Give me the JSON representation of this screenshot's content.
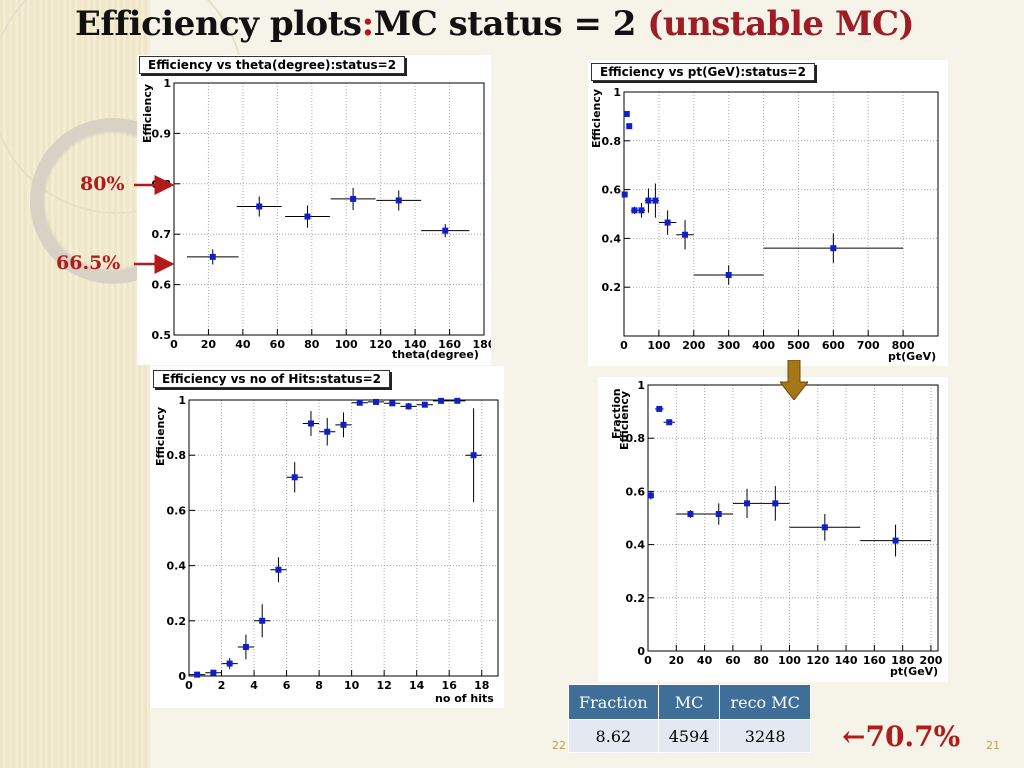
{
  "slide": {
    "title_part1": "Efficiency plots",
    "title_colon": ":",
    "title_part2": "MC status = 2 ",
    "title_part3": "(unstable MC)",
    "annotations": {
      "a80": "80%",
      "a665": "66.5%"
    },
    "big_percent": "70.7%",
    "big_arrow": "←",
    "page_left": "22",
    "page_right": "21",
    "colors": {
      "accent_red": "#b31b1b",
      "marker": "#1020c8",
      "table_header": "#3f6f99"
    }
  },
  "table": {
    "headers": [
      "Fraction",
      "MC",
      "reco MC"
    ],
    "row": [
      "8.62",
      "4594",
      "3248"
    ]
  },
  "chart_data": [
    {
      "type": "scatter",
      "title": "Efficiency vs theta(degree):status=2",
      "xlabel": "theta(degree)",
      "ylabel": "Efficiency",
      "xlim": [
        0,
        180
      ],
      "ylim": [
        0.5,
        1.0
      ],
      "xticks": [
        0,
        20,
        40,
        60,
        80,
        100,
        120,
        140,
        160,
        180
      ],
      "yticks": [
        0.5,
        0.6,
        0.7,
        0.8,
        0.9,
        1
      ],
      "ytick_labels": [
        "0.5",
        "0.6",
        "0.7",
        "0.8",
        "0.9",
        "1"
      ],
      "grid": true,
      "points": [
        {
          "x": 22.5,
          "y": 0.655,
          "xerr": 15,
          "yerr": 0.015
        },
        {
          "x": 49.5,
          "y": 0.755,
          "xerr": 13,
          "yerr": 0.02
        },
        {
          "x": 77.5,
          "y": 0.735,
          "xerr": 13,
          "yerr": 0.022
        },
        {
          "x": 104,
          "y": 0.77,
          "xerr": 13,
          "yerr": 0.022
        },
        {
          "x": 130.5,
          "y": 0.767,
          "xerr": 13,
          "yerr": 0.02
        },
        {
          "x": 157.5,
          "y": 0.707,
          "xerr": 14,
          "yerr": 0.013
        }
      ]
    },
    {
      "type": "scatter",
      "title": "Efficiency vs pt(GeV):status=2",
      "xlabel": "pt(GeV)",
      "ylabel": "Efficiency",
      "xlim": [
        0,
        900
      ],
      "ylim": [
        0,
        1.0
      ],
      "xticks": [
        0,
        100,
        200,
        300,
        400,
        500,
        600,
        700,
        800
      ],
      "yticks": [
        0.2,
        0.4,
        0.6,
        0.8,
        1
      ],
      "ytick_labels": [
        "0.2",
        "0.4",
        "0.6",
        "0.8",
        "1"
      ],
      "grid": true,
      "points": [
        {
          "x": 2,
          "y": 0.58,
          "xerr": 3,
          "yerr": 0.01
        },
        {
          "x": 8,
          "y": 0.91,
          "xerr": 3,
          "yerr": 0.005
        },
        {
          "x": 15,
          "y": 0.86,
          "xerr": 3,
          "yerr": 0.005
        },
        {
          "x": 30,
          "y": 0.515,
          "xerr": 10,
          "yerr": 0.015
        },
        {
          "x": 50,
          "y": 0.515,
          "xerr": 10,
          "yerr": 0.03
        },
        {
          "x": 70,
          "y": 0.555,
          "xerr": 10,
          "yerr": 0.05
        },
        {
          "x": 90,
          "y": 0.555,
          "xerr": 10,
          "yerr": 0.07
        },
        {
          "x": 125,
          "y": 0.465,
          "xerr": 25,
          "yerr": 0.05
        },
        {
          "x": 175,
          "y": 0.415,
          "xerr": 25,
          "yerr": 0.06
        },
        {
          "x": 300,
          "y": 0.25,
          "xerr": 100,
          "yerr": 0.04
        },
        {
          "x": 600,
          "y": 0.36,
          "xerr": 200,
          "yerr": 0.06
        }
      ]
    },
    {
      "type": "scatter",
      "title": "Efficiency vs no of Hits:status=2",
      "xlabel": "no of hits",
      "ylabel": "Efficiency",
      "xlim": [
        0,
        19
      ],
      "ylim": [
        0,
        1.0
      ],
      "xticks": [
        0,
        2,
        4,
        6,
        8,
        10,
        12,
        14,
        16,
        18
      ],
      "yticks": [
        0,
        0.2,
        0.4,
        0.6,
        0.8,
        1
      ],
      "ytick_labels": [
        "0",
        "0.2",
        "0.4",
        "0.6",
        "0.8",
        "1"
      ],
      "grid": true,
      "points": [
        {
          "x": 0.5,
          "y": 0.005,
          "xerr": 0.5,
          "yerr": 0.005
        },
        {
          "x": 1.5,
          "y": 0.012,
          "xerr": 0.5,
          "yerr": 0.01
        },
        {
          "x": 2.5,
          "y": 0.045,
          "xerr": 0.5,
          "yerr": 0.02
        },
        {
          "x": 3.5,
          "y": 0.105,
          "xerr": 0.5,
          "yerr": 0.045
        },
        {
          "x": 4.5,
          "y": 0.2,
          "xerr": 0.5,
          "yerr": 0.06
        },
        {
          "x": 5.5,
          "y": 0.385,
          "xerr": 0.5,
          "yerr": 0.045
        },
        {
          "x": 6.5,
          "y": 0.72,
          "xerr": 0.5,
          "yerr": 0.055
        },
        {
          "x": 7.5,
          "y": 0.915,
          "xerr": 0.5,
          "yerr": 0.045
        },
        {
          "x": 8.5,
          "y": 0.885,
          "xerr": 0.5,
          "yerr": 0.05
        },
        {
          "x": 9.5,
          "y": 0.91,
          "xerr": 0.5,
          "yerr": 0.045
        },
        {
          "x": 10.5,
          "y": 0.99,
          "xerr": 0.5,
          "yerr": 0.008
        },
        {
          "x": 11.5,
          "y": 0.993,
          "xerr": 0.5,
          "yerr": 0.008
        },
        {
          "x": 12.5,
          "y": 0.988,
          "xerr": 0.5,
          "yerr": 0.008
        },
        {
          "x": 13.5,
          "y": 0.977,
          "xerr": 0.5,
          "yerr": 0.012
        },
        {
          "x": 14.5,
          "y": 0.983,
          "xerr": 0.5,
          "yerr": 0.01
        },
        {
          "x": 15.5,
          "y": 0.997,
          "xerr": 0.5,
          "yerr": 0.004
        },
        {
          "x": 16.5,
          "y": 0.997,
          "xerr": 0.5,
          "yerr": 0.004
        },
        {
          "x": 17.5,
          "y": 0.8,
          "xerr": 0.5,
          "yerr": 0.17
        }
      ]
    },
    {
      "type": "scatter",
      "title": "",
      "xlabel": "pt(GeV)",
      "ylabel": "Fraction",
      "ylabel2": "Efficiency",
      "xlim": [
        0,
        205
      ],
      "ylim": [
        0,
        1.0
      ],
      "xticks": [
        0,
        20,
        40,
        60,
        80,
        100,
        120,
        140,
        160,
        180,
        200
      ],
      "yticks": [
        0,
        0.2,
        0.4,
        0.6,
        0.8,
        1
      ],
      "ytick_labels": [
        "0",
        "0.2",
        "0.4",
        "0.6",
        "0.8",
        "1"
      ],
      "grid": true,
      "points": [
        {
          "x": 2,
          "y": 0.585,
          "xerr": 2,
          "yerr": 0.015
        },
        {
          "x": 8,
          "y": 0.91,
          "xerr": 3,
          "yerr": 0.005
        },
        {
          "x": 15,
          "y": 0.86,
          "xerr": 4,
          "yerr": 0.005
        },
        {
          "x": 30,
          "y": 0.515,
          "xerr": 10,
          "yerr": 0.015
        },
        {
          "x": 50,
          "y": 0.515,
          "xerr": 10,
          "yerr": 0.04
        },
        {
          "x": 70,
          "y": 0.555,
          "xerr": 10,
          "yerr": 0.055
        },
        {
          "x": 90,
          "y": 0.555,
          "xerr": 10,
          "yerr": 0.065
        },
        {
          "x": 125,
          "y": 0.465,
          "xerr": 25,
          "yerr": 0.05
        },
        {
          "x": 175,
          "y": 0.415,
          "xerr": 25,
          "yerr": 0.06
        }
      ]
    }
  ]
}
